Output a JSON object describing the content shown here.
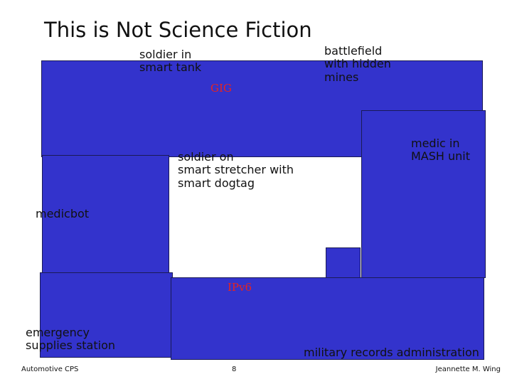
{
  "title": "This is Not Science Fiction",
  "labels": [
    "soldier in\nsmart tank",
    "battlefield\nwith hidden\nmines",
    "GIG",
    "soldier on\nsmart stretcher with\nsmart dogtag",
    "medic in\nMASH unit",
    "medicbot",
    "IPv6",
    "emergency\nsupplies station",
    "military records administration"
  ],
  "footer": {
    "left": "Automotive CPS",
    "page": "8",
    "right": "Jeannette M. Wing"
  }
}
